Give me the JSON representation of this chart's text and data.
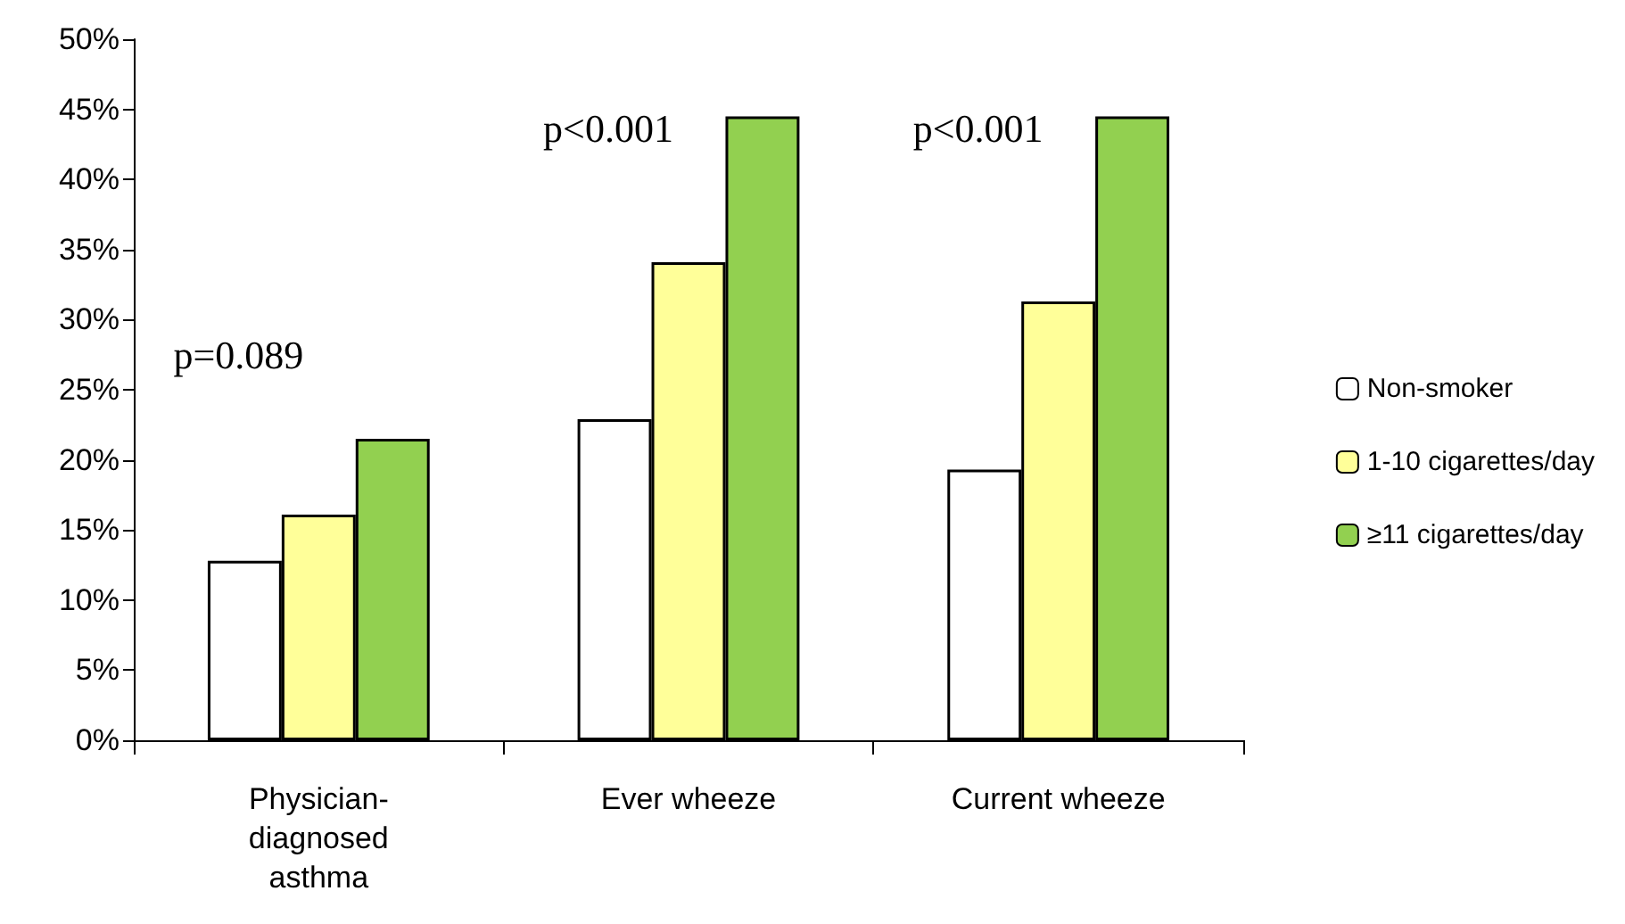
{
  "chart_data": {
    "type": "bar",
    "categories": [
      "Physician-diagnosed asthma",
      "Ever wheeze",
      "Current wheeze"
    ],
    "series": [
      {
        "name": "Non-smoker",
        "color": "#ffffff",
        "values": [
          12.8,
          22.9,
          19.3
        ]
      },
      {
        "name": "1-10 cigarettes/day",
        "color": "#ffff99",
        "values": [
          16.1,
          34.1,
          31.3
        ]
      },
      {
        "name": "≥11 cigarettes/day",
        "color": "#92d050",
        "values": [
          21.5,
          44.5,
          44.5
        ]
      }
    ],
    "ylim": [
      0,
      50
    ],
    "yticks": [
      {
        "value": 0,
        "label": "0%"
      },
      {
        "value": 5,
        "label": "5%"
      },
      {
        "value": 10,
        "label": "10%"
      },
      {
        "value": 15,
        "label": "15%"
      },
      {
        "value": 20,
        "label": "20%"
      },
      {
        "value": 25,
        "label": "25%"
      },
      {
        "value": 30,
        "label": "30%"
      },
      {
        "value": 35,
        "label": "35%"
      },
      {
        "value": 40,
        "label": "40%"
      },
      {
        "value": 45,
        "label": "45%"
      },
      {
        "value": 50,
        "label": "50%"
      }
    ],
    "annotations": [
      "p=0.089",
      "p<0.001",
      "p<0.001"
    ],
    "grid": false,
    "legend": "right"
  }
}
